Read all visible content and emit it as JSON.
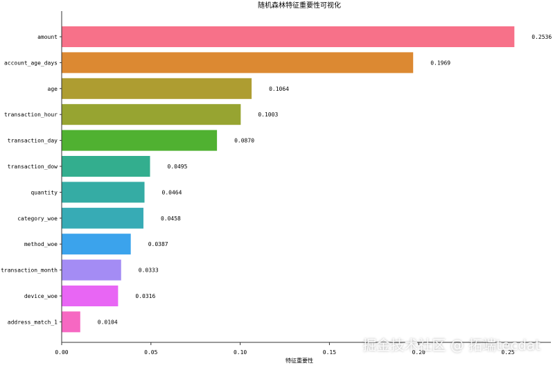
{
  "chart_data": {
    "type": "bar",
    "orientation": "horizontal",
    "title": "随机森林特征重要性可视化",
    "xlabel": "特征重要性",
    "ylabel": "",
    "xlim": [
      0,
      0.28
    ],
    "xticks": [
      "0.00",
      "0.05",
      "0.10",
      "0.15",
      "0.20",
      "0.25"
    ],
    "categories": [
      "amount",
      "account_age_days",
      "age",
      "transaction_hour",
      "transaction_day",
      "transaction_dow",
      "quantity",
      "category_woe",
      "method_woe",
      "transaction_month",
      "device_woe",
      "address_match_1"
    ],
    "values": [
      0.2536,
      0.1969,
      0.1064,
      0.1003,
      0.087,
      0.0495,
      0.0464,
      0.0458,
      0.0387,
      0.0333,
      0.0316,
      0.0104
    ],
    "value_labels": [
      "0.2536",
      "0.1969",
      "0.1064",
      "0.1003",
      "0.0870",
      "0.0495",
      "0.0464",
      "0.0458",
      "0.0387",
      "0.0333",
      "0.0316",
      "0.0104"
    ],
    "colors": [
      "#f77189",
      "#dc8932",
      "#ae9d31",
      "#97a431",
      "#50b131",
      "#33ae8e",
      "#35aca4",
      "#37abb5",
      "#3ba3ec",
      "#a48cf4",
      "#e866f4",
      "#f668c2"
    ],
    "grid": false
  },
  "watermark": "掘金技术社区 @ 拓端tecdat"
}
